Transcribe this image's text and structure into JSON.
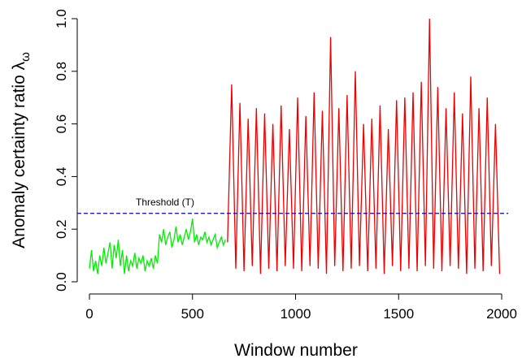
{
  "chart_data": {
    "type": "line",
    "x_label": "Window number",
    "y_label": "Anomaly certainty ratio λ",
    "y_label_subscript": "ω",
    "threshold": {
      "value": 0.26,
      "label": "Threshold (T)",
      "color": "#0000cd"
    },
    "xlim": [
      0,
      2000
    ],
    "ylim": [
      0,
      1
    ],
    "xticks": [
      0,
      500,
      1000,
      1500,
      2000
    ],
    "yticks": [
      {
        "value": 0,
        "label": "0.0"
      },
      0.2,
      0.4,
      0.6,
      0.8,
      {
        "value": 1,
        "label": "1.0"
      }
    ],
    "series": [
      {
        "color": "#00ee00",
        "x": [
          0,
          10,
          20,
          30,
          40,
          50,
          60,
          70,
          80,
          90,
          100,
          110,
          120,
          130,
          140,
          150,
          160,
          170,
          180,
          190,
          200,
          210,
          220,
          230,
          240,
          250,
          260,
          270,
          280,
          290,
          300,
          310,
          320,
          330,
          340,
          350,
          360,
          370,
          380,
          390,
          400,
          410,
          420,
          430,
          440,
          450,
          460,
          470,
          480,
          490,
          500,
          510,
          520,
          530,
          540,
          550,
          560,
          570,
          580,
          590,
          600,
          610,
          620,
          630,
          640,
          650,
          660
        ],
        "values": [
          0.05,
          0.12,
          0.04,
          0.08,
          0.03,
          0.1,
          0.06,
          0.13,
          0.07,
          0.11,
          0.15,
          0.05,
          0.14,
          0.09,
          0.16,
          0.06,
          0.12,
          0.03,
          0.1,
          0.04,
          0.08,
          0.06,
          0.11,
          0.05,
          0.09,
          0.07,
          0.1,
          0.04,
          0.08,
          0.06,
          0.09,
          0.05,
          0.1,
          0.07,
          0.18,
          0.15,
          0.2,
          0.14,
          0.17,
          0.19,
          0.13,
          0.16,
          0.21,
          0.15,
          0.18,
          0.14,
          0.17,
          0.2,
          0.16,
          0.19,
          0.24,
          0.15,
          0.18,
          0.14,
          0.17,
          0.16,
          0.19,
          0.15,
          0.17,
          0.14,
          0.16,
          0.18,
          0.13,
          0.15,
          0.17,
          0.14,
          0.16
        ]
      },
      {
        "color": "#ee0000",
        "x": [
          670,
          690,
          710,
          730,
          750,
          770,
          790,
          810,
          830,
          850,
          870,
          890,
          910,
          930,
          950,
          970,
          990,
          1010,
          1030,
          1050,
          1070,
          1090,
          1110,
          1130,
          1150,
          1170,
          1190,
          1210,
          1230,
          1250,
          1270,
          1290,
          1310,
          1330,
          1350,
          1370,
          1390,
          1410,
          1430,
          1450,
          1470,
          1490,
          1510,
          1530,
          1550,
          1570,
          1590,
          1610,
          1630,
          1650,
          1670,
          1690,
          1710,
          1730,
          1750,
          1770,
          1790,
          1810,
          1830,
          1850,
          1870,
          1890,
          1910,
          1930,
          1950,
          1970,
          1990
        ],
        "values": [
          0.15,
          0.75,
          0.05,
          0.68,
          0.04,
          0.62,
          0.06,
          0.66,
          0.03,
          0.64,
          0.05,
          0.6,
          0.04,
          0.67,
          0.06,
          0.58,
          0.05,
          0.7,
          0.04,
          0.63,
          0.06,
          0.72,
          0.05,
          0.65,
          0.03,
          0.93,
          0.06,
          0.66,
          0.04,
          0.71,
          0.05,
          0.8,
          0.06,
          0.6,
          0.04,
          0.62,
          0.05,
          0.67,
          0.03,
          0.58,
          0.06,
          0.69,
          0.04,
          0.7,
          0.05,
          0.72,
          0.04,
          0.76,
          0.06,
          1.0,
          0.05,
          0.74,
          0.04,
          0.66,
          0.06,
          0.72,
          0.05,
          0.64,
          0.03,
          0.78,
          0.05,
          0.66,
          0.04,
          0.7,
          0.06,
          0.6,
          0.03
        ]
      }
    ]
  }
}
